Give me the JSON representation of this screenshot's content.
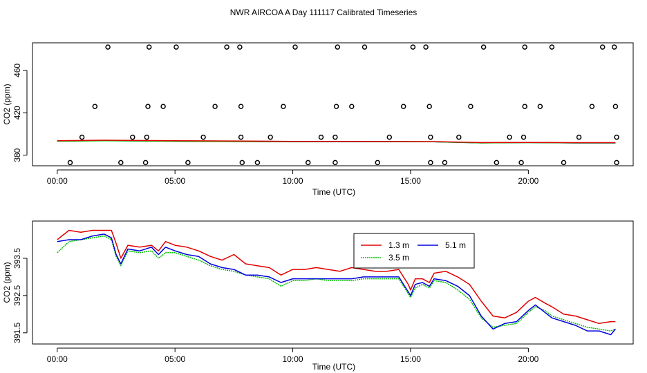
{
  "title": "NWR AIRCOA A  Day 111117  Calibrated Timeseries",
  "colors": {
    "s13": "#e00000",
    "s35": "#00c000",
    "s51": "#0000e0",
    "axis": "#000000"
  },
  "chart_data": [
    {
      "type": "scatter",
      "name": "top-panel",
      "xlabel": "Time (UTC)",
      "ylabel": "CO2 (ppm)",
      "xlim": [
        -1.05,
        24.45
      ],
      "ylim": [
        370,
        486
      ],
      "xticks": [
        0,
        5,
        10,
        15,
        20
      ],
      "xtick_labels": [
        "00:00",
        "05:00",
        "10:00",
        "15:00",
        "20:00"
      ],
      "yticks": [
        380,
        420,
        460
      ],
      "ytick_labels": [
        "380",
        "420",
        "460"
      ],
      "points_x": [
        0.55,
        2.7,
        3.75,
        5.55,
        7.85,
        8.5,
        10.65,
        11.8,
        13.6,
        15.85,
        16.45,
        18.65,
        19.7,
        21.5,
        23.75,
        1.05,
        3.2,
        3.8,
        6.2,
        7.8,
        9.05,
        11.2,
        11.8,
        14.1,
        15.85,
        17.05,
        19.2,
        19.8,
        22.15,
        23.75,
        1.6,
        3.85,
        4.5,
        6.7,
        7.8,
        9.6,
        11.85,
        12.5,
        14.7,
        15.8,
        17.55,
        19.85,
        20.5,
        22.7,
        23.7,
        2.15,
        3.9,
        5.05,
        7.2,
        7.75,
        10.1,
        11.9,
        13.05,
        15.1,
        15.65,
        18.1,
        19.85,
        21.0,
        23.15,
        23.65
      ],
      "points_y": [
        373,
        373,
        373,
        373,
        373,
        373,
        373,
        373,
        373,
        373,
        373,
        373,
        373,
        373,
        373,
        397,
        397,
        397,
        397,
        397,
        397,
        397,
        397,
        397,
        397,
        397,
        397,
        397,
        397,
        397,
        426,
        426,
        426,
        426,
        426,
        426,
        426,
        426,
        426,
        426,
        426,
        426,
        426,
        426,
        426,
        482,
        482,
        482,
        482,
        482,
        482,
        482,
        482,
        482,
        482,
        482,
        482,
        482,
        482,
        482
      ],
      "line_x": [
        0,
        2,
        4,
        6,
        8,
        10,
        12,
        14,
        16,
        18,
        20,
        22,
        23.7
      ],
      "series": [
        {
          "name": "1.3 m",
          "values": [
            393.6,
            394.1,
            393.8,
            393.5,
            393.3,
            393.0,
            393.0,
            392.9,
            392.8,
            391.9,
            392.0,
            391.8,
            391.8
          ]
        },
        {
          "name": "3.5 m",
          "values": [
            393.2,
            393.6,
            393.3,
            393.0,
            392.9,
            392.7,
            392.8,
            392.7,
            392.6,
            391.6,
            391.8,
            391.6,
            391.6
          ]
        },
        {
          "name": "5.1 m",
          "values": [
            393.3,
            393.7,
            393.4,
            393.1,
            392.9,
            392.8,
            392.8,
            392.8,
            392.6,
            391.6,
            391.9,
            391.5,
            391.5
          ]
        }
      ]
    },
    {
      "type": "line",
      "name": "bottom-panel",
      "xlabel": "Time (UTC)",
      "ylabel": "CO2 (ppm)",
      "xlim": [
        -1.05,
        24.45
      ],
      "ylim": [
        391.2,
        394.5
      ],
      "xticks": [
        0,
        5,
        10,
        15,
        20
      ],
      "xtick_labels": [
        "00:00",
        "05:00",
        "10:00",
        "15:00",
        "20:00"
      ],
      "yticks": [
        391.5,
        392.5,
        393.5
      ],
      "ytick_labels": [
        "391.5",
        "392.5",
        "393.5"
      ],
      "legend": {
        "position": "top-center",
        "entries": [
          "1.3 m",
          "5.1 m",
          "3.5 m"
        ]
      },
      "x": [
        0,
        0.5,
        1,
        1.5,
        2,
        2.3,
        2.5,
        2.7,
        3,
        3.5,
        4,
        4.3,
        4.6,
        5,
        5.5,
        6,
        6.5,
        7,
        7.5,
        8,
        8.5,
        9,
        9.5,
        10,
        10.5,
        11,
        11.5,
        12,
        12.5,
        13,
        13.5,
        14,
        14.5,
        14.9,
        15,
        15.2,
        15.5,
        15.8,
        16,
        16.5,
        17,
        17.5,
        18,
        18.5,
        19,
        19.5,
        20,
        20.3,
        20.7,
        21,
        21.5,
        22,
        22.5,
        23,
        23.5,
        23.7
      ],
      "series": [
        {
          "name": "1.3 m",
          "values": [
            394.0,
            394.25,
            394.2,
            394.25,
            394.25,
            394.25,
            393.9,
            393.5,
            393.85,
            393.8,
            393.85,
            393.7,
            393.95,
            393.85,
            393.8,
            393.7,
            393.55,
            393.45,
            393.6,
            393.35,
            393.3,
            393.25,
            393.05,
            393.2,
            393.2,
            393.25,
            393.2,
            393.15,
            393.25,
            393.2,
            393.15,
            393.15,
            393.2,
            392.8,
            392.65,
            392.95,
            392.95,
            392.85,
            393.1,
            393.15,
            393.0,
            392.8,
            392.35,
            391.95,
            391.9,
            392.05,
            392.35,
            392.45,
            392.3,
            392.2,
            392.0,
            391.95,
            391.85,
            391.75,
            391.8,
            391.8
          ]
        },
        {
          "name": "5.1 m",
          "values": [
            393.95,
            394.0,
            394.0,
            394.1,
            394.15,
            394.05,
            393.6,
            393.35,
            393.75,
            393.7,
            393.8,
            393.6,
            393.8,
            393.7,
            393.6,
            393.55,
            393.35,
            393.25,
            393.2,
            393.05,
            393.05,
            393.0,
            392.85,
            392.95,
            392.95,
            392.95,
            392.95,
            392.95,
            392.95,
            393.0,
            393.0,
            393.0,
            393.0,
            392.6,
            392.5,
            392.8,
            392.85,
            392.75,
            392.95,
            392.9,
            392.75,
            392.5,
            391.95,
            391.6,
            391.75,
            391.8,
            392.1,
            392.25,
            392.05,
            391.9,
            391.8,
            391.7,
            391.55,
            391.55,
            391.45,
            391.6
          ]
        },
        {
          "name": "3.5 m",
          "values": [
            393.65,
            393.95,
            394.0,
            394.05,
            394.1,
            394.0,
            393.55,
            393.3,
            393.7,
            393.65,
            393.7,
            393.5,
            393.65,
            393.65,
            393.55,
            393.45,
            393.3,
            393.2,
            393.15,
            393.05,
            393.0,
            392.95,
            392.75,
            392.9,
            392.9,
            392.95,
            392.9,
            392.9,
            392.9,
            392.95,
            392.95,
            392.95,
            392.95,
            392.55,
            392.45,
            392.7,
            392.8,
            392.7,
            392.9,
            392.85,
            392.65,
            392.4,
            391.9,
            391.65,
            391.7,
            391.75,
            392.05,
            392.2,
            392.1,
            391.95,
            391.85,
            391.75,
            391.65,
            391.6,
            391.55,
            391.6
          ]
        }
      ]
    }
  ]
}
